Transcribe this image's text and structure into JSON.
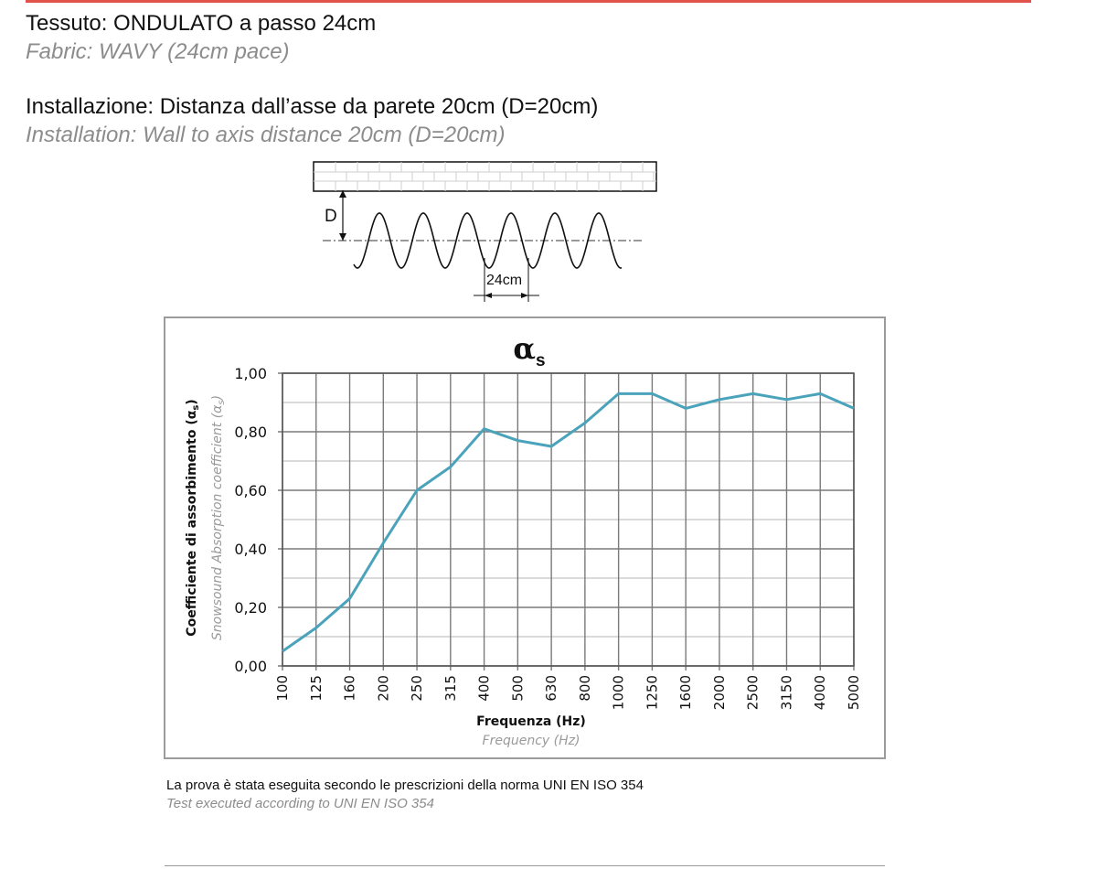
{
  "colors": {
    "accent_rule": "#e0524a",
    "series_line": "#4aa3bb",
    "grid": "#7a7a7a"
  },
  "header": {
    "fabric_it": "Tessuto: ONDULATO a passo 24cm",
    "fabric_en": "Fabric: WAVY (24cm pace)",
    "install_it": "Installazione: Distanza dall’asse da parete 20cm (D=20cm)",
    "install_en": "Installation: Wall to axis distance 20cm (D=20cm)"
  },
  "diagram": {
    "d_label": "D",
    "pitch_label": "24cm"
  },
  "chart_data": {
    "type": "line",
    "title": "αs",
    "title_main": "α",
    "title_sub": "s",
    "ylabel": "Coefficiente di assorbimento (αs)",
    "ylabel_main": "Coefficiente di assorbimento (α",
    "ylabel_sub": "s",
    "ylabel_close": ")",
    "ylabel_en": "Snowsound Absorption coefficient (αs)",
    "ylabel_en_main": "Snowsound Absorption coefficient (α",
    "ylabel_en_sub": "s",
    "ylabel_en_close": ")",
    "xlabel": "Frequenza (Hz)",
    "xlabel_en": "Frequency (Hz)",
    "ylim": [
      0,
      1
    ],
    "yticks": [
      "0,00",
      "0,20",
      "0,40",
      "0,60",
      "0,80",
      "1,00"
    ],
    "grid": true,
    "categories": [
      "100",
      "125",
      "160",
      "200",
      "250",
      "315",
      "400",
      "500",
      "630",
      "800",
      "1000",
      "1250",
      "1600",
      "2000",
      "2500",
      "3150",
      "4000",
      "5000"
    ],
    "series": [
      {
        "values": [
          0.05,
          0.13,
          0.23,
          0.42,
          0.6,
          0.68,
          0.81,
          0.77,
          0.75,
          0.83,
          0.93,
          0.93,
          0.88,
          0.91,
          0.93,
          0.91,
          0.93,
          0.88
        ]
      }
    ]
  },
  "footer": {
    "note_it": "La prova è stata eseguita secondo le prescrizioni della norma UNI EN ISO 354",
    "note_en": "Test executed according  to UNI EN ISO 354"
  }
}
